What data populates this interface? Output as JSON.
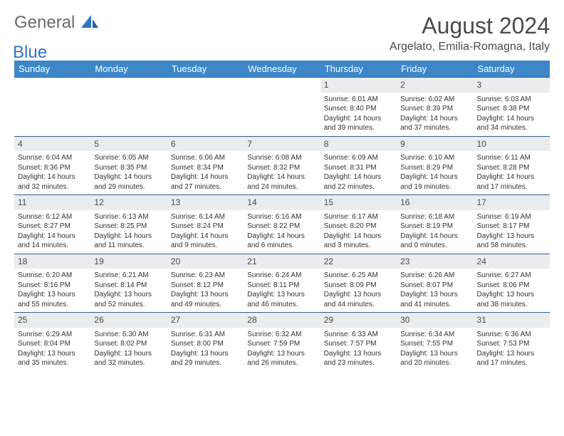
{
  "brand": {
    "part1": "General",
    "part2": "Blue"
  },
  "title": "August 2024",
  "location": "Argelato, Emilia-Romagna, Italy",
  "colors": {
    "header_bg": "#3d87c9",
    "header_text": "#ffffff",
    "daynum_bg": "#e9edef",
    "row_border": "#2f5f8f",
    "logo_blue": "#2f75c1",
    "text": "#333333"
  },
  "weekdays": [
    "Sunday",
    "Monday",
    "Tuesday",
    "Wednesday",
    "Thursday",
    "Friday",
    "Saturday"
  ],
  "weeks": [
    {
      "nums": [
        "",
        "",
        "",
        "",
        "1",
        "2",
        "3"
      ],
      "cells": [
        null,
        null,
        null,
        null,
        {
          "sr": "Sunrise: 6:01 AM",
          "ss": "Sunset: 8:40 PM",
          "dl1": "Daylight: 14 hours",
          "dl2": "and 39 minutes."
        },
        {
          "sr": "Sunrise: 6:02 AM",
          "ss": "Sunset: 8:39 PM",
          "dl1": "Daylight: 14 hours",
          "dl2": "and 37 minutes."
        },
        {
          "sr": "Sunrise: 6:03 AM",
          "ss": "Sunset: 8:38 PM",
          "dl1": "Daylight: 14 hours",
          "dl2": "and 34 minutes."
        }
      ]
    },
    {
      "nums": [
        "4",
        "5",
        "6",
        "7",
        "8",
        "9",
        "10"
      ],
      "cells": [
        {
          "sr": "Sunrise: 6:04 AM",
          "ss": "Sunset: 8:36 PM",
          "dl1": "Daylight: 14 hours",
          "dl2": "and 32 minutes."
        },
        {
          "sr": "Sunrise: 6:05 AM",
          "ss": "Sunset: 8:35 PM",
          "dl1": "Daylight: 14 hours",
          "dl2": "and 29 minutes."
        },
        {
          "sr": "Sunrise: 6:06 AM",
          "ss": "Sunset: 8:34 PM",
          "dl1": "Daylight: 14 hours",
          "dl2": "and 27 minutes."
        },
        {
          "sr": "Sunrise: 6:08 AM",
          "ss": "Sunset: 8:32 PM",
          "dl1": "Daylight: 14 hours",
          "dl2": "and 24 minutes."
        },
        {
          "sr": "Sunrise: 6:09 AM",
          "ss": "Sunset: 8:31 PM",
          "dl1": "Daylight: 14 hours",
          "dl2": "and 22 minutes."
        },
        {
          "sr": "Sunrise: 6:10 AM",
          "ss": "Sunset: 8:29 PM",
          "dl1": "Daylight: 14 hours",
          "dl2": "and 19 minutes."
        },
        {
          "sr": "Sunrise: 6:11 AM",
          "ss": "Sunset: 8:28 PM",
          "dl1": "Daylight: 14 hours",
          "dl2": "and 17 minutes."
        }
      ]
    },
    {
      "nums": [
        "11",
        "12",
        "13",
        "14",
        "15",
        "16",
        "17"
      ],
      "cells": [
        {
          "sr": "Sunrise: 6:12 AM",
          "ss": "Sunset: 8:27 PM",
          "dl1": "Daylight: 14 hours",
          "dl2": "and 14 minutes."
        },
        {
          "sr": "Sunrise: 6:13 AM",
          "ss": "Sunset: 8:25 PM",
          "dl1": "Daylight: 14 hours",
          "dl2": "and 11 minutes."
        },
        {
          "sr": "Sunrise: 6:14 AM",
          "ss": "Sunset: 8:24 PM",
          "dl1": "Daylight: 14 hours",
          "dl2": "and 9 minutes."
        },
        {
          "sr": "Sunrise: 6:16 AM",
          "ss": "Sunset: 8:22 PM",
          "dl1": "Daylight: 14 hours",
          "dl2": "and 6 minutes."
        },
        {
          "sr": "Sunrise: 6:17 AM",
          "ss": "Sunset: 8:20 PM",
          "dl1": "Daylight: 14 hours",
          "dl2": "and 3 minutes."
        },
        {
          "sr": "Sunrise: 6:18 AM",
          "ss": "Sunset: 8:19 PM",
          "dl1": "Daylight: 14 hours",
          "dl2": "and 0 minutes."
        },
        {
          "sr": "Sunrise: 6:19 AM",
          "ss": "Sunset: 8:17 PM",
          "dl1": "Daylight: 13 hours",
          "dl2": "and 58 minutes."
        }
      ]
    },
    {
      "nums": [
        "18",
        "19",
        "20",
        "21",
        "22",
        "23",
        "24"
      ],
      "cells": [
        {
          "sr": "Sunrise: 6:20 AM",
          "ss": "Sunset: 8:16 PM",
          "dl1": "Daylight: 13 hours",
          "dl2": "and 55 minutes."
        },
        {
          "sr": "Sunrise: 6:21 AM",
          "ss": "Sunset: 8:14 PM",
          "dl1": "Daylight: 13 hours",
          "dl2": "and 52 minutes."
        },
        {
          "sr": "Sunrise: 6:23 AM",
          "ss": "Sunset: 8:12 PM",
          "dl1": "Daylight: 13 hours",
          "dl2": "and 49 minutes."
        },
        {
          "sr": "Sunrise: 6:24 AM",
          "ss": "Sunset: 8:11 PM",
          "dl1": "Daylight: 13 hours",
          "dl2": "and 46 minutes."
        },
        {
          "sr": "Sunrise: 6:25 AM",
          "ss": "Sunset: 8:09 PM",
          "dl1": "Daylight: 13 hours",
          "dl2": "and 44 minutes."
        },
        {
          "sr": "Sunrise: 6:26 AM",
          "ss": "Sunset: 8:07 PM",
          "dl1": "Daylight: 13 hours",
          "dl2": "and 41 minutes."
        },
        {
          "sr": "Sunrise: 6:27 AM",
          "ss": "Sunset: 8:06 PM",
          "dl1": "Daylight: 13 hours",
          "dl2": "and 38 minutes."
        }
      ]
    },
    {
      "nums": [
        "25",
        "26",
        "27",
        "28",
        "29",
        "30",
        "31"
      ],
      "cells": [
        {
          "sr": "Sunrise: 6:29 AM",
          "ss": "Sunset: 8:04 PM",
          "dl1": "Daylight: 13 hours",
          "dl2": "and 35 minutes."
        },
        {
          "sr": "Sunrise: 6:30 AM",
          "ss": "Sunset: 8:02 PM",
          "dl1": "Daylight: 13 hours",
          "dl2": "and 32 minutes."
        },
        {
          "sr": "Sunrise: 6:31 AM",
          "ss": "Sunset: 8:00 PM",
          "dl1": "Daylight: 13 hours",
          "dl2": "and 29 minutes."
        },
        {
          "sr": "Sunrise: 6:32 AM",
          "ss": "Sunset: 7:59 PM",
          "dl1": "Daylight: 13 hours",
          "dl2": "and 26 minutes."
        },
        {
          "sr": "Sunrise: 6:33 AM",
          "ss": "Sunset: 7:57 PM",
          "dl1": "Daylight: 13 hours",
          "dl2": "and 23 minutes."
        },
        {
          "sr": "Sunrise: 6:34 AM",
          "ss": "Sunset: 7:55 PM",
          "dl1": "Daylight: 13 hours",
          "dl2": "and 20 minutes."
        },
        {
          "sr": "Sunrise: 6:36 AM",
          "ss": "Sunset: 7:53 PM",
          "dl1": "Daylight: 13 hours",
          "dl2": "and 17 minutes."
        }
      ]
    }
  ]
}
